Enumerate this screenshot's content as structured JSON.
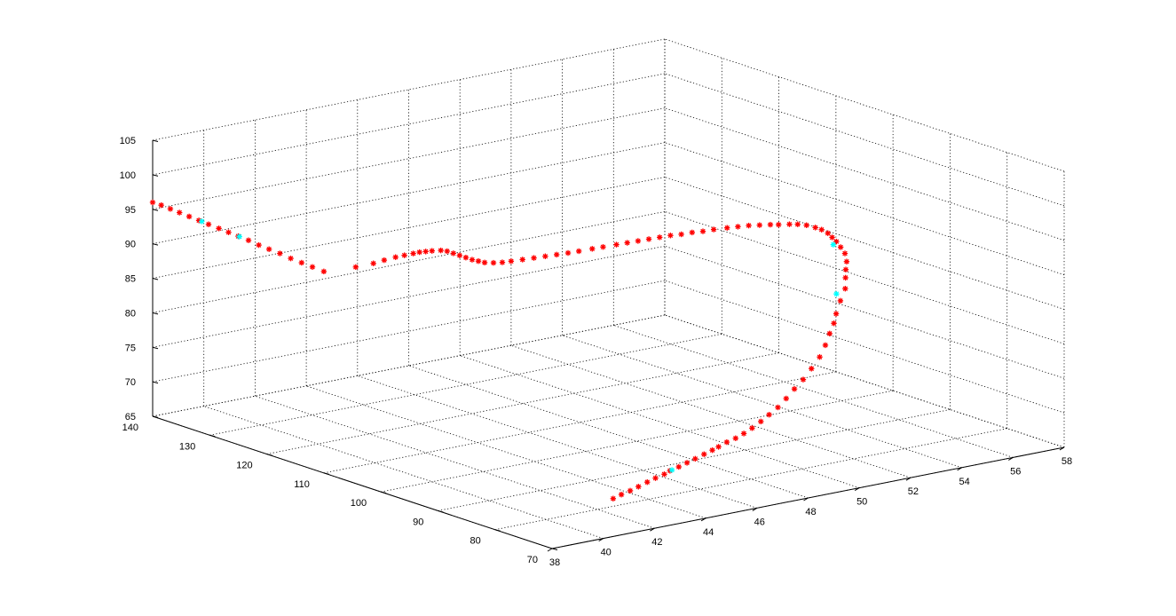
{
  "chart_data": {
    "type": "scatter3d",
    "title": "",
    "xlabel": "",
    "ylabel": "",
    "zlabel": "",
    "grid": true,
    "view": "matlab-default-3d",
    "axes": {
      "x": {
        "lim": [
          38,
          58
        ],
        "ticks": [
          38,
          40,
          42,
          44,
          46,
          48,
          50,
          52,
          54,
          56,
          58
        ]
      },
      "y": {
        "lim": [
          70,
          140
        ],
        "ticks": [
          70,
          80,
          90,
          100,
          110,
          120,
          130,
          140
        ]
      },
      "z": {
        "lim": [
          65,
          105
        ],
        "ticks": [
          65,
          70,
          75,
          80,
          85,
          90,
          95,
          100,
          105
        ]
      }
    },
    "marker": "*",
    "colors": {
      "primary": "#ff0000",
      "highlight": "#00ffff"
    },
    "series": [
      {
        "label": "",
        "color": "#ff0000",
        "points": [
          [
            41.5,
            75.0,
            68.3
          ],
          [
            42.0,
            75.8,
            68.3
          ],
          [
            42.5,
            76.5,
            68.3
          ],
          [
            43.0,
            77.3,
            68.3
          ],
          [
            43.5,
            78.0,
            68.4
          ],
          [
            44.0,
            78.8,
            68.4
          ],
          [
            44.5,
            79.5,
            68.4
          ],
          [
            44.9,
            80.3,
            68.4
          ],
          [
            45.4,
            81.0,
            68.4
          ],
          [
            45.9,
            81.8,
            68.4
          ],
          [
            46.4,
            82.6,
            68.4
          ],
          [
            46.9,
            83.3,
            68.5
          ],
          [
            47.4,
            84.1,
            68.5
          ],
          [
            47.8,
            84.8,
            68.5
          ],
          [
            48.3,
            85.6,
            68.6
          ],
          [
            48.8,
            86.3,
            68.6
          ],
          [
            49.3,
            87.1,
            68.7
          ],
          [
            49.8,
            87.9,
            68.9
          ],
          [
            50.3,
            88.6,
            69.3
          ],
          [
            50.8,
            89.4,
            69.7
          ],
          [
            51.3,
            90.1,
            70.2
          ],
          [
            51.8,
            90.9,
            70.9
          ],
          [
            52.3,
            91.7,
            71.7
          ],
          [
            52.8,
            92.4,
            72.5
          ],
          [
            53.3,
            93.2,
            73.5
          ],
          [
            53.8,
            94.0,
            74.6
          ],
          [
            54.2,
            94.8,
            75.8
          ],
          [
            54.5,
            95.4,
            77.1
          ],
          [
            54.8,
            96.0,
            78.2
          ],
          [
            55.0,
            96.5,
            79.3
          ],
          [
            55.3,
            97.1,
            80.8
          ],
          [
            55.6,
            97.6,
            82.2
          ],
          [
            55.7,
            98.0,
            83.6
          ],
          [
            55.8,
            98.4,
            84.6
          ],
          [
            55.9,
            98.7,
            85.6
          ],
          [
            55.9,
            99.0,
            86.7
          ],
          [
            55.8,
            99.3,
            87.6
          ],
          [
            55.7,
            99.6,
            88.4
          ],
          [
            55.6,
            99.9,
            89.0
          ],
          [
            55.5,
            100.2,
            89.6
          ],
          [
            55.3,
            100.4,
            90.2
          ],
          [
            55.1,
            100.6,
            90.6
          ],
          [
            54.8,
            100.8,
            91.1
          ],
          [
            54.5,
            101.0,
            91.4
          ],
          [
            54.2,
            101.1,
            91.6
          ],
          [
            53.8,
            101.2,
            91.8
          ],
          [
            53.5,
            101.3,
            92.0
          ],
          [
            53.1,
            101.4,
            92.2
          ],
          [
            52.7,
            101.5,
            92.4
          ],
          [
            52.3,
            101.6,
            92.5
          ],
          [
            51.9,
            101.7,
            92.6
          ],
          [
            51.4,
            101.8,
            92.7
          ],
          [
            51.0,
            101.9,
            92.7
          ],
          [
            50.6,
            102.0,
            92.8
          ],
          [
            50.2,
            102.1,
            92.8
          ],
          [
            49.8,
            102.2,
            92.9
          ],
          [
            49.4,
            102.3,
            92.9
          ],
          [
            49.0,
            102.4,
            92.9
          ],
          [
            48.6,
            102.5,
            92.9
          ],
          [
            48.2,
            102.6,
            92.9
          ],
          [
            47.8,
            102.7,
            92.9
          ],
          [
            47.3,
            102.8,
            92.9
          ],
          [
            46.9,
            102.9,
            92.9
          ],
          [
            46.4,
            103.0,
            92.9
          ],
          [
            46.0,
            103.1,
            92.9
          ],
          [
            45.6,
            103.3,
            92.9
          ],
          [
            45.2,
            103.5,
            92.9
          ],
          [
            44.8,
            103.7,
            92.9
          ],
          [
            44.4,
            103.9,
            92.9
          ],
          [
            44.0,
            104.1,
            92.9
          ],
          [
            43.7,
            104.3,
            92.9
          ],
          [
            43.4,
            104.5,
            93.0
          ],
          [
            43.1,
            104.7,
            93.2
          ],
          [
            42.9,
            104.9,
            93.5
          ],
          [
            42.7,
            105.1,
            93.8
          ],
          [
            42.5,
            105.3,
            94.2
          ],
          [
            42.3,
            105.5,
            94.6
          ],
          [
            42.1,
            105.7,
            95.0
          ],
          [
            41.9,
            105.9,
            95.4
          ],
          [
            41.7,
            106.1,
            95.6
          ],
          [
            41.4,
            106.3,
            95.7
          ],
          [
            41.2,
            106.5,
            95.7
          ],
          [
            41.0,
            106.7,
            95.7
          ],
          [
            40.8,
            106.9,
            95.6
          ],
          [
            40.5,
            107.1,
            95.5
          ],
          [
            40.2,
            107.3,
            95.4
          ],
          [
            39.8,
            107.5,
            95.2
          ],
          [
            39.4,
            107.6,
            95.0
          ],
          [
            38.8,
            108.0,
            94.8
          ],
          [
            38.0,
            110.0,
            94.2
          ],
          [
            38.0,
            112.0,
            94.3
          ],
          [
            38.0,
            113.9,
            94.4
          ],
          [
            38.0,
            115.8,
            94.5
          ],
          [
            38.0,
            117.7,
            94.7
          ],
          [
            38.0,
            119.6,
            94.8
          ],
          [
            38.0,
            121.4,
            94.9
          ],
          [
            38.0,
            123.2,
            95.1
          ],
          [
            38.0,
            125.0,
            95.2
          ],
          [
            38.0,
            126.7,
            95.3
          ],
          [
            38.0,
            128.4,
            95.4
          ],
          [
            38.0,
            130.2,
            95.5
          ],
          [
            38.0,
            131.9,
            95.6
          ],
          [
            38.0,
            133.6,
            95.7
          ],
          [
            38.0,
            135.3,
            95.8
          ],
          [
            38.0,
            136.9,
            95.9
          ],
          [
            38.0,
            138.5,
            96.0
          ],
          [
            38.0,
            140.0,
            96.0
          ]
        ]
      },
      {
        "label": "",
        "color": "#00ffff",
        "points": [
          [
            45.0,
            80.4,
            68.4
          ],
          [
            55.3,
            97.8,
            81.6
          ],
          [
            55.6,
            99.7,
            88.0
          ],
          [
            38.0,
            124.8,
            95.2
          ],
          [
            38.0,
            131.4,
            95.6
          ]
        ]
      }
    ]
  }
}
